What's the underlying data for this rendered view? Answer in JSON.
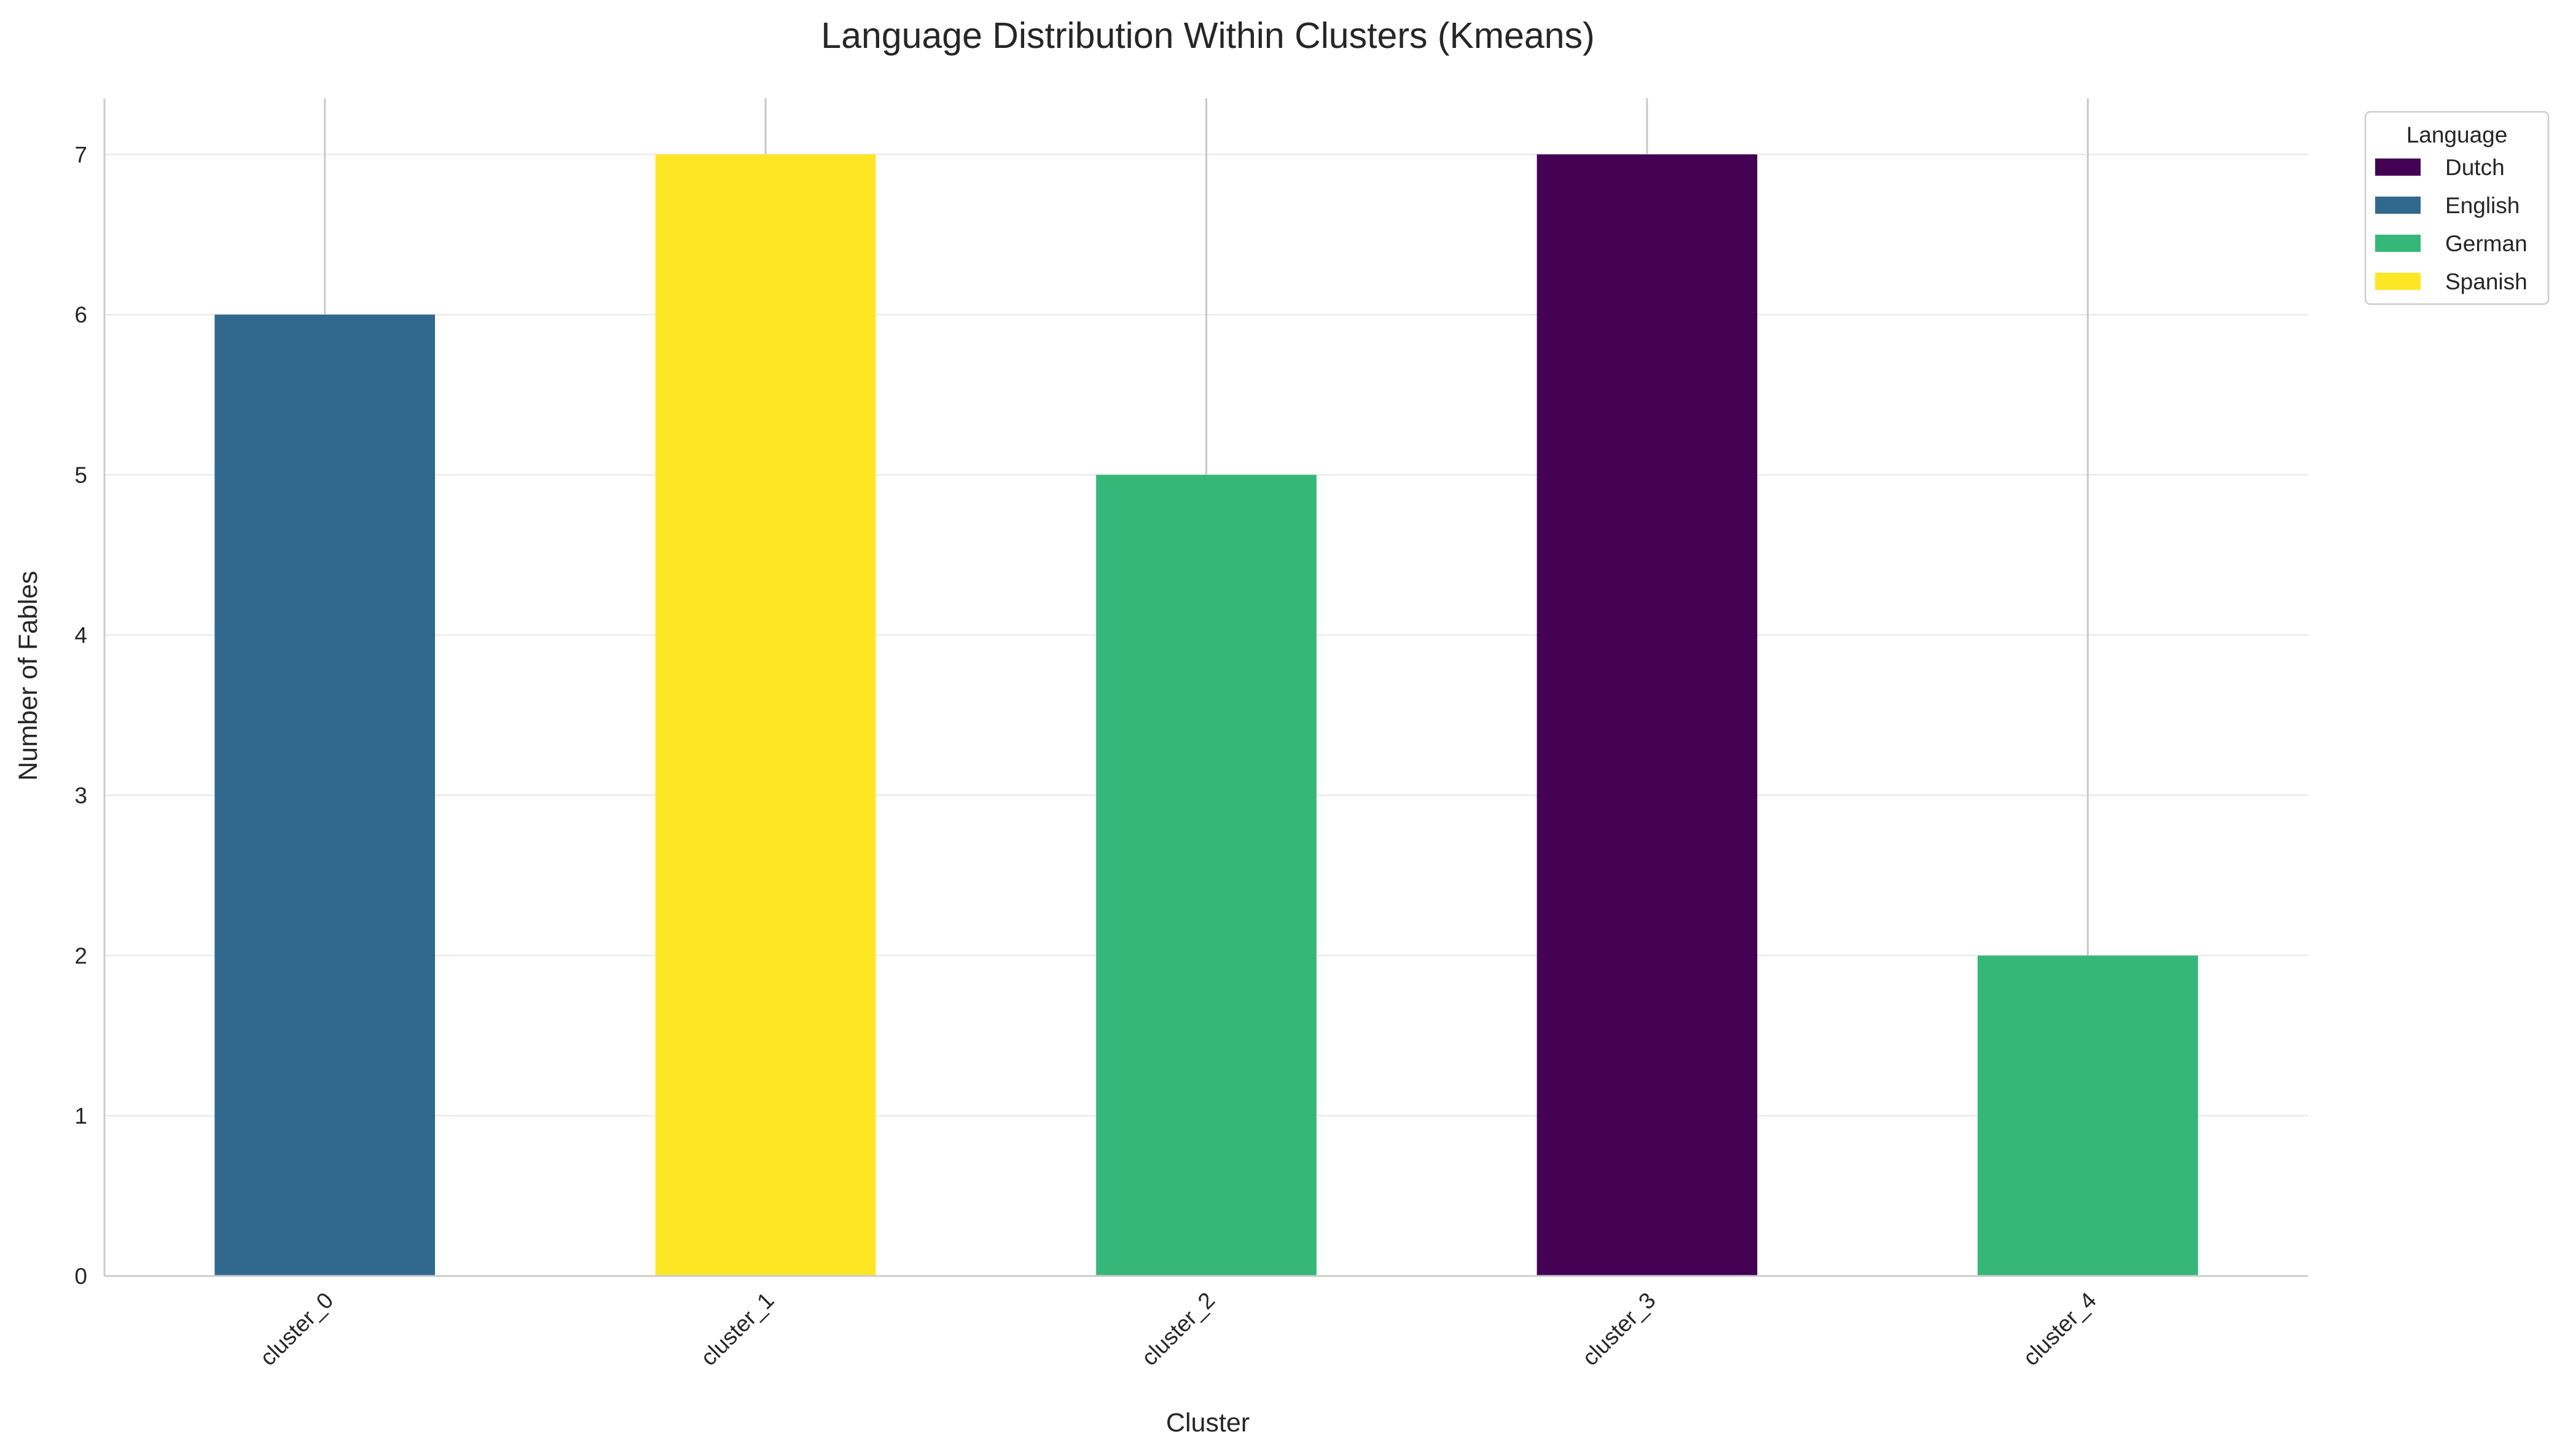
{
  "chart_data": {
    "type": "bar",
    "stacked": true,
    "title": "Language Distribution Within Clusters (Kmeans)",
    "xlabel": "Cluster",
    "ylabel": "Number of Fables",
    "categories": [
      "cluster_0",
      "cluster_1",
      "cluster_2",
      "cluster_3",
      "cluster_4"
    ],
    "ylim": [
      0,
      7.35
    ],
    "yticks": [
      "0",
      "1",
      "2",
      "3",
      "4",
      "5",
      "6",
      "7"
    ],
    "grid": true,
    "legend": {
      "title": "Language",
      "placement": "outside top-right"
    },
    "series": [
      {
        "name": "Dutch",
        "color": "#440154",
        "values": [
          0,
          0,
          0,
          7,
          0
        ]
      },
      {
        "name": "English",
        "color": "#31688e",
        "values": [
          6,
          0,
          0,
          0,
          0
        ]
      },
      {
        "name": "German",
        "color": "#35b779",
        "values": [
          0,
          0,
          5,
          0,
          2
        ]
      },
      {
        "name": "Spanish",
        "color": "#fde725",
        "values": [
          0,
          7,
          0,
          0,
          0
        ]
      }
    ]
  }
}
